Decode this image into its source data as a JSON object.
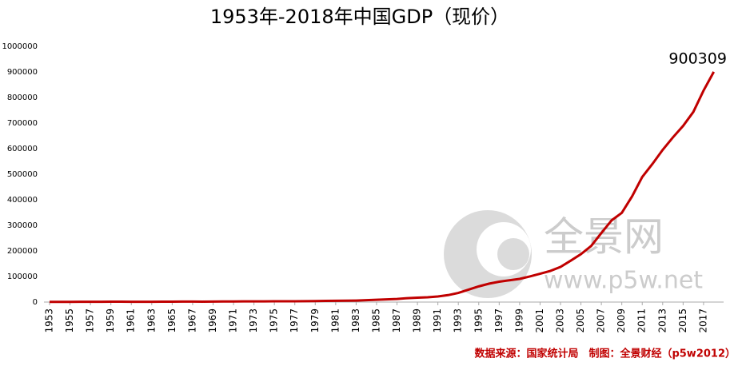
{
  "chart_data": {
    "type": "line",
    "title": "1953年-2018年中国GDP（现价）",
    "categories": [
      "1953",
      null,
      "1955",
      null,
      "1957",
      null,
      "1959",
      null,
      "1961",
      null,
      "1963",
      null,
      "1965",
      null,
      "1967",
      null,
      "1969",
      null,
      "1971",
      null,
      "1973",
      null,
      "1975",
      null,
      "1977",
      null,
      "1979",
      null,
      "1981",
      null,
      "1983",
      null,
      "1985",
      null,
      "1987",
      null,
      "1989",
      null,
      "1991",
      null,
      "1993",
      null,
      "1995",
      null,
      "1997",
      null,
      "1999",
      null,
      "2001",
      null,
      "2003",
      null,
      "2005",
      null,
      "2007",
      null,
      "2009",
      null,
      "2011",
      null,
      "2013",
      null,
      "2015",
      null,
      "2017",
      null
    ],
    "series": [
      {
        "name": "GDP",
        "color": "#c00000",
        "values": [
          824,
          859,
          912,
          1031,
          1071,
          1312,
          1448,
          1470,
          1232,
          1162,
          1248,
          1470,
          1734,
          1889,
          1794,
          1744,
          1962,
          2280,
          2457,
          2552,
          2756,
          2828,
          3040,
          2989,
          3250,
          3679,
          4101,
          4588,
          4936,
          5373,
          6021,
          7279,
          9099,
          10376,
          12175,
          15180,
          17180,
          18873,
          22006,
          27195,
          35673,
          48638,
          61340,
          71814,
          79715,
          85196,
          90564,
          100280,
          110863,
          121717,
          137422,
          161840,
          187319,
          219439,
          270232,
          319516,
          349081,
          413030,
          489301,
          540367,
          595244,
          643974,
          689052,
          743586,
          827122,
          900309
        ]
      }
    ],
    "ylim": [
      0,
      1000000
    ],
    "yticks": [
      0,
      100000,
      200000,
      300000,
      400000,
      500000,
      600000,
      700000,
      800000,
      900000,
      1000000
    ],
    "watermark": [
      "全景网",
      "www.p5w.net"
    ],
    "source": "数据来源：国家统计局　制图：全景财经（p5w2012）"
  }
}
